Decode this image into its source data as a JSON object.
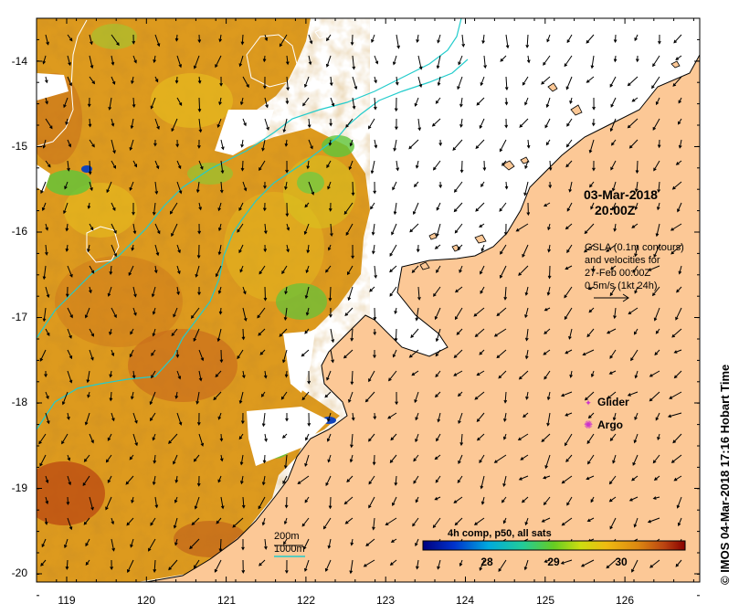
{
  "map": {
    "date": "03-Mar-2018",
    "time": "20:00Z",
    "gsla_lines": [
      "GSLA (0.1m contours)",
      "and velocities for",
      "27-Feb 00:00Z",
      "0.5m/s (1kt 24h)"
    ],
    "legend": [
      {
        "label": "Glider",
        "color": "#cc33cc",
        "symbol": "✦"
      },
      {
        "label": "Argo",
        "color": "#cc33cc",
        "symbol": "✺"
      }
    ],
    "depth_labels": [
      "200m",
      "1000m"
    ],
    "colorbar": {
      "title": "4h comp, p50, all sats",
      "ticks": [
        "28",
        "29",
        "30"
      ]
    },
    "credit": "© IMOS 04-Mar-2018 17:16 Hobart Time",
    "axes": {
      "y_ticks": [
        "-14",
        "-15",
        "-16",
        "-17",
        "-18",
        "-19",
        "-20"
      ],
      "x_ticks": [
        "119",
        "120",
        "121",
        "122",
        "123",
        "124",
        "125",
        "126"
      ]
    },
    "colors": {
      "land": "#fcc896",
      "warm": "#d98a14",
      "hot": "#b33a10",
      "green": "#5fc53a",
      "shelf_contour": "#22cccc"
    }
  }
}
